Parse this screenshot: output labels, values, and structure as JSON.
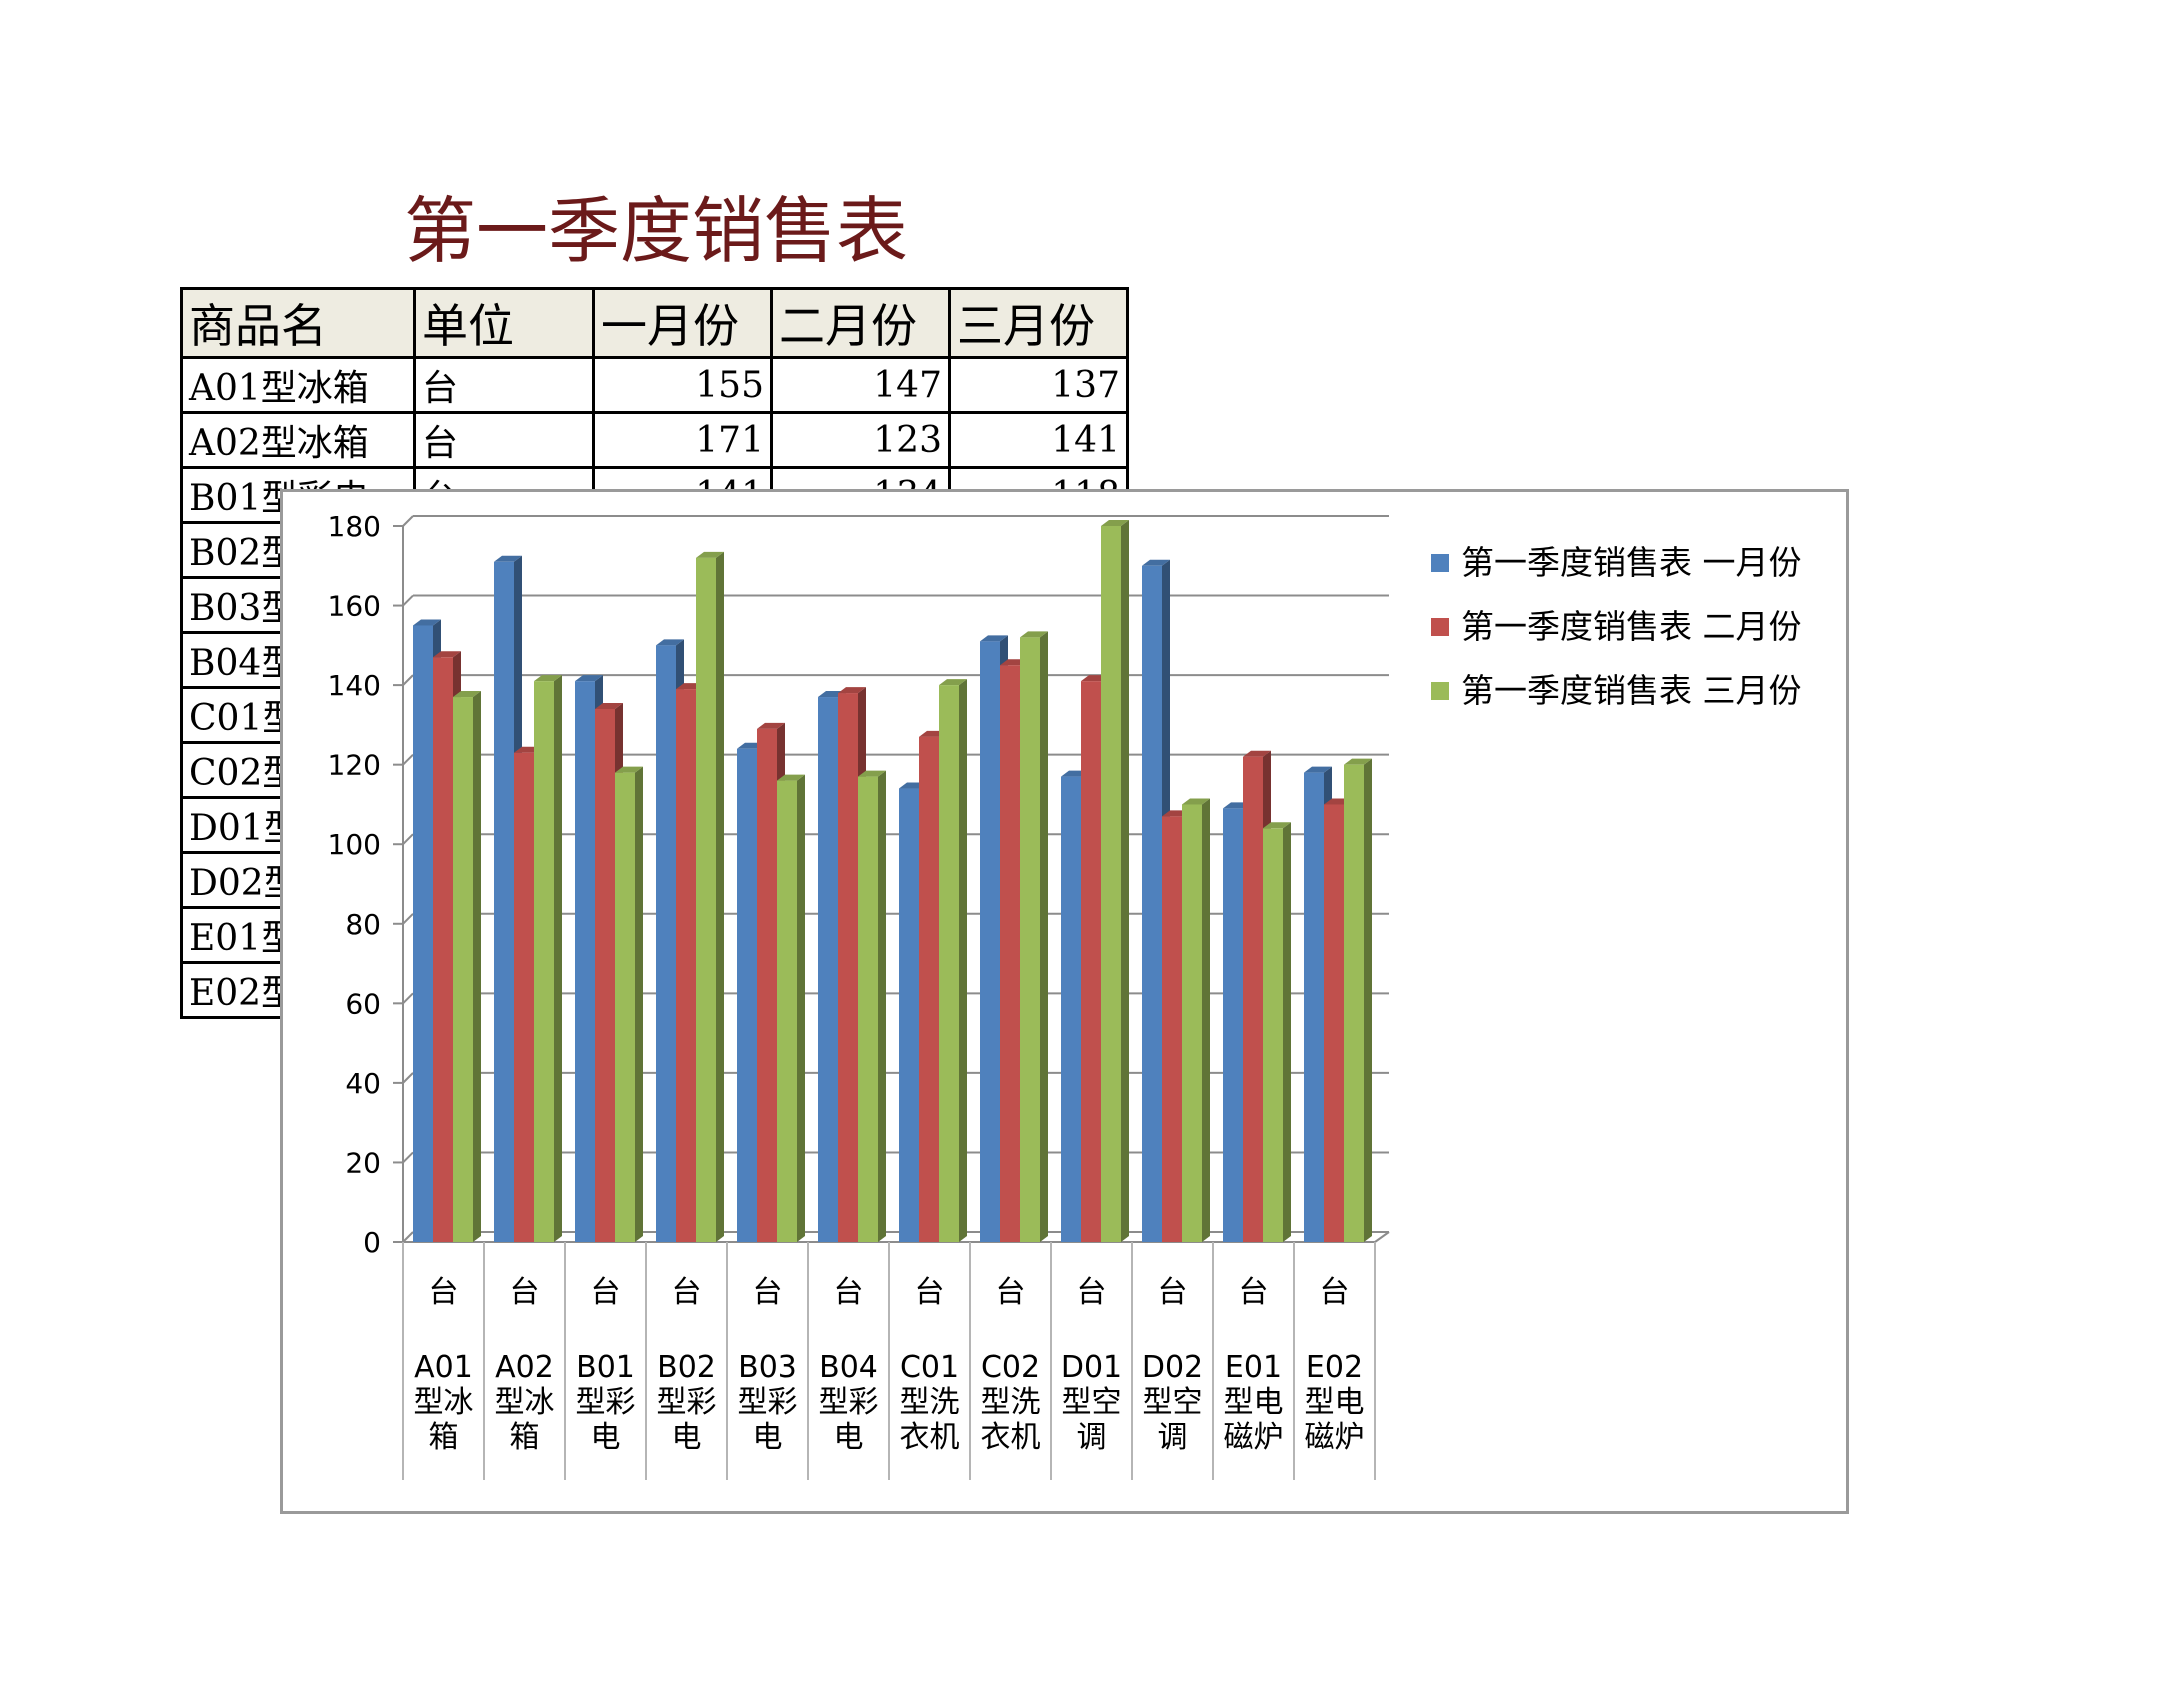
{
  "sheet": {
    "title": "第一季度销售表",
    "headers": [
      "商品名",
      "单位",
      "一月份",
      "二月份",
      "三月份"
    ],
    "rows": [
      {
        "name": "A01型冰箱",
        "unit": "台",
        "jan": "155",
        "feb": "147",
        "mar": "137"
      },
      {
        "name": "A02型冰箱",
        "unit": "台",
        "jan": "171",
        "feb": "123",
        "mar": "141"
      },
      {
        "name": "B01型彩电",
        "unit": "台",
        "jan": "141",
        "feb": "134",
        "mar": "118"
      },
      {
        "name": "B02型",
        "unit": "",
        "jan": "",
        "feb": "",
        "mar": ""
      },
      {
        "name": "B03型",
        "unit": "",
        "jan": "",
        "feb": "",
        "mar": ""
      },
      {
        "name": "B04型",
        "unit": "",
        "jan": "",
        "feb": "",
        "mar": ""
      },
      {
        "name": "C01型",
        "unit": "",
        "jan": "",
        "feb": "",
        "mar": ""
      },
      {
        "name": "C02型",
        "unit": "",
        "jan": "",
        "feb": "",
        "mar": ""
      },
      {
        "name": "D01型",
        "unit": "",
        "jan": "",
        "feb": "",
        "mar": ""
      },
      {
        "name": "D02型",
        "unit": "",
        "jan": "",
        "feb": "",
        "mar": ""
      },
      {
        "name": "E01型",
        "unit": "",
        "jan": "",
        "feb": "",
        "mar": ""
      },
      {
        "name": "E02型",
        "unit": "",
        "jan": "",
        "feb": "",
        "mar": ""
      }
    ]
  },
  "chart_data": {
    "type": "bar",
    "ylim": [
      0,
      180
    ],
    "yticks": [
      0,
      20,
      40,
      60,
      80,
      100,
      120,
      140,
      160,
      180
    ],
    "grid": true,
    "legend": "top-right",
    "categories": [
      {
        "unit": "台",
        "name": "A01型冰箱"
      },
      {
        "unit": "台",
        "name": "A02型冰箱"
      },
      {
        "unit": "台",
        "name": "B01型彩电"
      },
      {
        "unit": "台",
        "name": "B02型彩电"
      },
      {
        "unit": "台",
        "name": "B03型彩电"
      },
      {
        "unit": "台",
        "name": "B04型彩电"
      },
      {
        "unit": "台",
        "name": "C01型洗衣机"
      },
      {
        "unit": "台",
        "name": "C02型洗衣机"
      },
      {
        "unit": "台",
        "name": "D01型空调"
      },
      {
        "unit": "台",
        "name": "D02型空调"
      },
      {
        "unit": "台",
        "name": "E01型电磁炉"
      },
      {
        "unit": "台",
        "name": "E02型电磁炉"
      }
    ],
    "series": [
      {
        "name": "第一季度销售表 一月份",
        "color": "#4f81bd",
        "values": [
          155,
          171,
          141,
          150,
          124,
          137,
          114,
          151,
          117,
          170,
          109,
          118
        ]
      },
      {
        "name": "第一季度销售表 二月份",
        "color": "#c0504d",
        "values": [
          147,
          123,
          134,
          139,
          129,
          138,
          127,
          145,
          141,
          107,
          122,
          110
        ]
      },
      {
        "name": "第一季度销售表 三月份",
        "color": "#9bbb59",
        "values": [
          137,
          141,
          118,
          172,
          116,
          117,
          140,
          152,
          180,
          110,
          104,
          120
        ]
      }
    ]
  }
}
